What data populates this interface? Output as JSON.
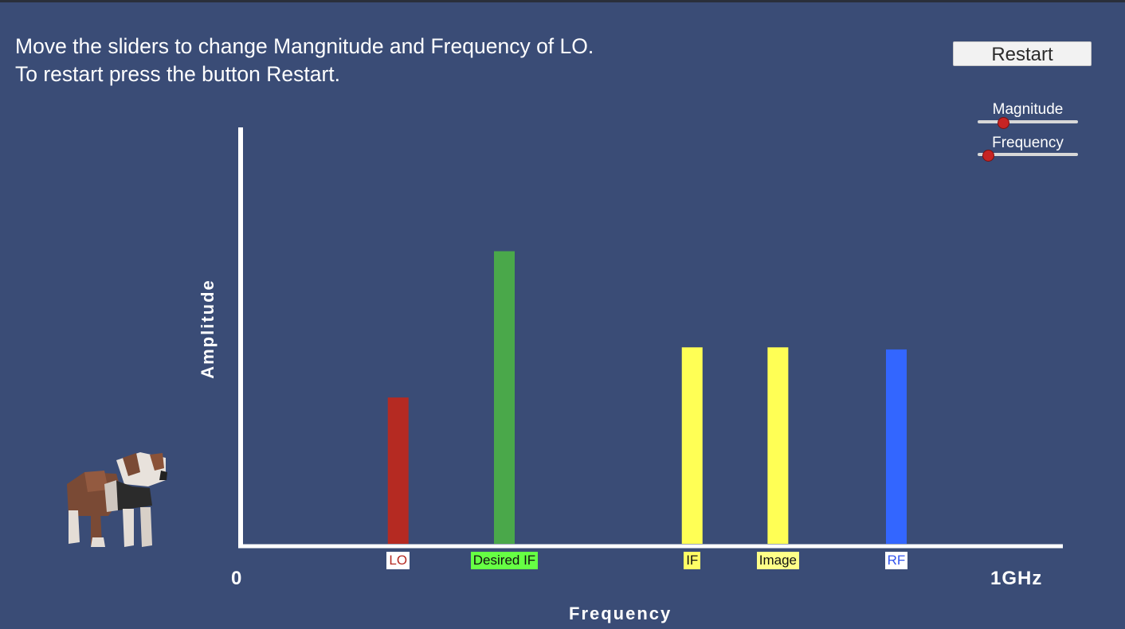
{
  "instructions": {
    "line1": "Move the sliders to change Mangnitude and Frequency of LO.",
    "line2": "To restart press the button Restart."
  },
  "restart_label": "Restart",
  "sliders": [
    {
      "label": "Magnitude",
      "value": 0.25
    },
    {
      "label": "Frequency",
      "value": 0.1
    }
  ],
  "chart_data": {
    "type": "bar",
    "xlabel": "Frequency",
    "ylabel": "Amplitude",
    "x_ticks": [
      "0",
      "1GHz"
    ],
    "bars": [
      {
        "label": "LO",
        "position": 0.19,
        "amplitude": 0.35,
        "color": "#b52a22",
        "label_bg": "#ffffff",
        "label_color": "#b52a22"
      },
      {
        "label": "Desired IF",
        "position": 0.32,
        "amplitude": 0.7,
        "color": "#4aa84a",
        "label_bg": "#66ff44",
        "label_color": "#111111"
      },
      {
        "label": "IF",
        "position": 0.55,
        "amplitude": 0.47,
        "color": "#ffff55",
        "label_bg": "#ffff66",
        "label_color": "#111111"
      },
      {
        "label": "Image",
        "position": 0.655,
        "amplitude": 0.47,
        "color": "#ffff55",
        "label_bg": "#ffff88",
        "label_color": "#111111"
      },
      {
        "label": "RF",
        "position": 0.8,
        "amplitude": 0.465,
        "color": "#3366ff",
        "label_bg": "#ffffff",
        "label_color": "#3355ee"
      }
    ]
  }
}
